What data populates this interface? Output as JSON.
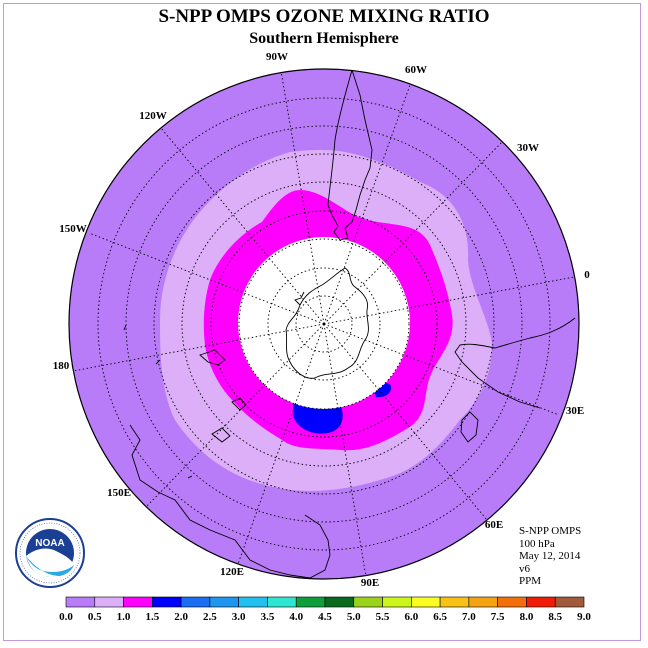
{
  "title": "S-NPP OMPS OZONE MIXING RATIO",
  "subtitle": "Southern Hemisphere",
  "longitude_labels": [
    "90W",
    "60W",
    "120W",
    "30W",
    "150W",
    "0",
    "180",
    "30E",
    "150E",
    "60E",
    "120E",
    "90E"
  ],
  "info": {
    "instrument": "S-NPP OMPS",
    "level": "100 hPa",
    "date": "May 12, 2014",
    "version": "v6",
    "units": "PPM"
  },
  "logo_text": "NOAA",
  "legend": {
    "ticks": [
      "0.0",
      "0.5",
      "1.0",
      "1.5",
      "2.0",
      "2.5",
      "3.0",
      "3.5",
      "4.0",
      "4.5",
      "5.0",
      "5.5",
      "6.0",
      "6.5",
      "7.0",
      "7.5",
      "8.0",
      "8.5",
      "9.0"
    ],
    "colors": [
      "#b97cf9",
      "#dcaff8",
      "#ff00ff",
      "#0000ff",
      "#1b6ef2",
      "#1e96f0",
      "#22c0ee",
      "#2ee5cf",
      "#0e9f3a",
      "#076a1e",
      "#9bd21b",
      "#ccf51c",
      "#fafd20",
      "#f8c215",
      "#f6a312",
      "#f36f0c",
      "#ef1d07",
      "#a15a3b"
    ]
  },
  "colors": {
    "level_0": "#b97cf9",
    "level_1": "#dcaff8",
    "level_2": "#ff00ff",
    "level_3": "#0000ff",
    "no_data": "#ffffff"
  }
}
